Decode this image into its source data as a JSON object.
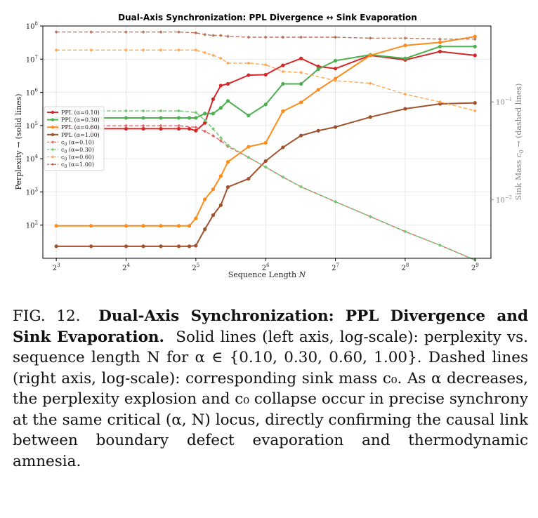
{
  "chart_data": {
    "type": "line",
    "title": "Dual-Axis Synchronization: PPL Divergence ↔ Sink Evaporation",
    "xlabel": "Sequence Length N",
    "ylabel_left": "Perplexity → (solid lines)",
    "ylabel_right": "Sink Mass c0 → (dashed lines)",
    "xscale": "log2",
    "xlim": [
      7,
      600
    ],
    "ylim_left": [
      10,
      100000000
    ],
    "ylim_right": [
      0.0025,
      0.6
    ],
    "yscale_left": "log",
    "yscale_right": "log",
    "grid": true,
    "legend_position": "center-left",
    "x_ticks": [
      {
        "value": 8,
        "base": "2",
        "exp": "3"
      },
      {
        "value": 16,
        "base": "2",
        "exp": "4"
      },
      {
        "value": 32,
        "base": "2",
        "exp": "5"
      },
      {
        "value": 64,
        "base": "2",
        "exp": "6"
      },
      {
        "value": 128,
        "base": "2",
        "exp": "7"
      },
      {
        "value": 256,
        "base": "2",
        "exp": "8"
      },
      {
        "value": 512,
        "base": "2",
        "exp": "9"
      }
    ],
    "y_ticks_left": [
      {
        "value": 100,
        "base": "10",
        "exp": "2"
      },
      {
        "value": 1000,
        "base": "10",
        "exp": "3"
      },
      {
        "value": 10000,
        "base": "10",
        "exp": "4"
      },
      {
        "value": 100000,
        "base": "10",
        "exp": "5"
      },
      {
        "value": 1000000,
        "base": "10",
        "exp": "6"
      },
      {
        "value": 10000000,
        "base": "10",
        "exp": "7"
      },
      {
        "value": 100000000,
        "base": "10",
        "exp": "8"
      }
    ],
    "y_ticks_right": [
      {
        "value": 0.01,
        "base": "10",
        "exp": "−2"
      },
      {
        "value": 0.1,
        "base": "10",
        "exp": "−1"
      }
    ],
    "x": [
      8,
      11.3,
      13.5,
      16,
      19,
      22.6,
      27,
      30,
      32,
      35,
      38,
      41,
      44,
      48,
      54,
      64,
      76,
      91,
      108,
      128,
      181,
      215,
      256,
      315,
      362,
      431,
      512
    ],
    "series": [
      {
        "name": "PPL (α=0.10)",
        "axis": "left",
        "style": "solid",
        "color": "#d62728",
        "x": [
          8,
          11.3,
          16,
          19,
          22.6,
          27,
          30,
          32,
          35,
          38,
          41,
          44,
          54,
          64,
          76,
          91,
          108,
          128,
          181,
          256,
          362,
          512
        ],
        "values": [
          80000,
          80000,
          80000,
          80000,
          80000,
          80000,
          80000,
          70000,
          120000,
          620000,
          1600000,
          1800000,
          3300000,
          3400000,
          6500000,
          10500000,
          6000000,
          5200000,
          13000000,
          9500000,
          17000000,
          13000000
        ]
      },
      {
        "name": "PPL (α=0.30)",
        "axis": "left",
        "style": "solid",
        "color": "#4caf50",
        "x": [
          8,
          11.3,
          16,
          19,
          22.6,
          27,
          30,
          32,
          35,
          38,
          41,
          44,
          54,
          64,
          76,
          91,
          108,
          128,
          181,
          256,
          362,
          512
        ],
        "values": [
          170000,
          170000,
          170000,
          170000,
          170000,
          170000,
          170000,
          170000,
          230000,
          230000,
          340000,
          550000,
          200000,
          430000,
          1800000,
          1800000,
          5000000,
          9000000,
          13500000,
          10500000,
          24000000,
          24000000
        ]
      },
      {
        "name": "PPL (α=0.60)",
        "axis": "left",
        "style": "solid",
        "color": "#ff8c1a",
        "x": [
          8,
          11.3,
          16,
          19,
          22.6,
          27,
          30,
          32,
          35,
          38,
          41,
          44,
          54,
          64,
          76,
          91,
          108,
          128,
          181,
          256,
          362,
          512
        ],
        "values": [
          95,
          95,
          95,
          95,
          95,
          95,
          95,
          160,
          600,
          1200,
          3000,
          8000,
          23000,
          30000,
          270000,
          500000,
          1200000,
          2600000,
          13000000,
          26000000,
          32000000,
          48000000
        ]
      },
      {
        "name": "PPL (α=1.00)",
        "axis": "left",
        "style": "solid",
        "color": "#a0522d",
        "x": [
          8,
          11.3,
          16,
          19,
          22.6,
          27,
          30,
          32,
          35,
          38,
          41,
          44,
          54,
          64,
          76,
          91,
          108,
          128,
          181,
          256,
          362,
          512
        ],
        "values": [
          23,
          23,
          23,
          23,
          23,
          23,
          23,
          24,
          75,
          200,
          400,
          1400,
          2500,
          8500,
          22000,
          50000,
          70000,
          90000,
          180000,
          320000,
          450000,
          480000
        ]
      },
      {
        "name": "c0 (α=0.10)",
        "axis": "right",
        "style": "dashed",
        "color": "#e06666",
        "x": [
          8,
          11.3,
          16,
          19,
          22.6,
          27,
          32,
          35,
          38,
          41,
          44,
          54,
          64,
          76,
          91,
          128,
          181,
          256,
          362,
          512
        ],
        "values": [
          0.057,
          0.057,
          0.057,
          0.057,
          0.057,
          0.057,
          0.055,
          0.05,
          0.045,
          0.04,
          0.035,
          0.027,
          0.0215,
          0.017,
          0.0135,
          0.0095,
          0.0067,
          0.0047,
          0.0034,
          0.0024
        ]
      },
      {
        "name": "c0 (α=0.30)",
        "axis": "right",
        "style": "dashed",
        "color": "#6fc96f",
        "x": [
          8,
          11.3,
          16,
          19,
          22.6,
          27,
          32,
          35,
          38,
          41,
          44,
          54,
          64,
          76,
          91,
          128,
          181,
          256,
          362,
          512
        ],
        "values": [
          0.081,
          0.081,
          0.081,
          0.081,
          0.081,
          0.081,
          0.078,
          0.065,
          0.053,
          0.043,
          0.036,
          0.027,
          0.0215,
          0.017,
          0.0135,
          0.0095,
          0.0067,
          0.0047,
          0.0034,
          0.0024
        ]
      },
      {
        "name": "c0 (α=0.60)",
        "axis": "right",
        "style": "dashed",
        "color": "#ffa54f",
        "x": [
          8,
          11.3,
          16,
          19,
          22.6,
          27,
          32,
          35,
          38,
          41,
          44,
          54,
          64,
          76,
          91,
          128,
          181,
          256,
          362,
          512
        ],
        "values": [
          0.34,
          0.34,
          0.34,
          0.34,
          0.34,
          0.34,
          0.34,
          0.32,
          0.3,
          0.28,
          0.25,
          0.25,
          0.24,
          0.205,
          0.2,
          0.165,
          0.155,
          0.12,
          0.1,
          0.081
        ]
      },
      {
        "name": "c0 (α=1.00)",
        "axis": "right",
        "style": "dashed",
        "color": "#b8735a",
        "x": [
          8,
          11.3,
          16,
          19,
          22.6,
          27,
          32,
          35,
          38,
          41,
          44,
          54,
          64,
          76,
          91,
          128,
          181,
          256,
          362,
          512
        ],
        "values": [
          0.52,
          0.52,
          0.52,
          0.52,
          0.52,
          0.52,
          0.51,
          0.49,
          0.48,
          0.48,
          0.47,
          0.46,
          0.46,
          0.46,
          0.46,
          0.46,
          0.45,
          0.45,
          0.44,
          0.44
        ]
      }
    ],
    "legend": [
      {
        "prefix": "PPL (α=0.10)",
        "sub": "",
        "suffix": ""
      },
      {
        "prefix": "PPL (α=0.30)",
        "sub": "",
        "suffix": ""
      },
      {
        "prefix": "PPL (α=0.60)",
        "sub": "",
        "suffix": ""
      },
      {
        "prefix": "PPL (α=1.00)",
        "sub": "",
        "suffix": ""
      },
      {
        "prefix": "c",
        "sub": "0",
        "suffix": " (α=0.10)"
      },
      {
        "prefix": "c",
        "sub": "0",
        "suffix": " (α=0.30)"
      },
      {
        "prefix": "c",
        "sub": "0",
        "suffix": " (α=0.60)"
      },
      {
        "prefix": "c",
        "sub": "0",
        "suffix": " (α=1.00)"
      }
    ]
  },
  "caption": {
    "label": "FIG. 12.",
    "title": "Dual-Axis Synchronization: PPL Divergence and Sink Evaporation.",
    "body": "Solid lines (left axis, log-scale): perplexity vs. sequence length N for α ∈ {0.10, 0.30, 0.60, 1.00}. Dashed lines (right axis, log-scale): corresponding sink mass c₀. As α decreases, the perplexity explosion and c₀ collapse occur in precise synchrony at the same critical (α, N) locus, directly confirming the causal link between boundary defect evaporation and thermodynamic amnesia."
  }
}
